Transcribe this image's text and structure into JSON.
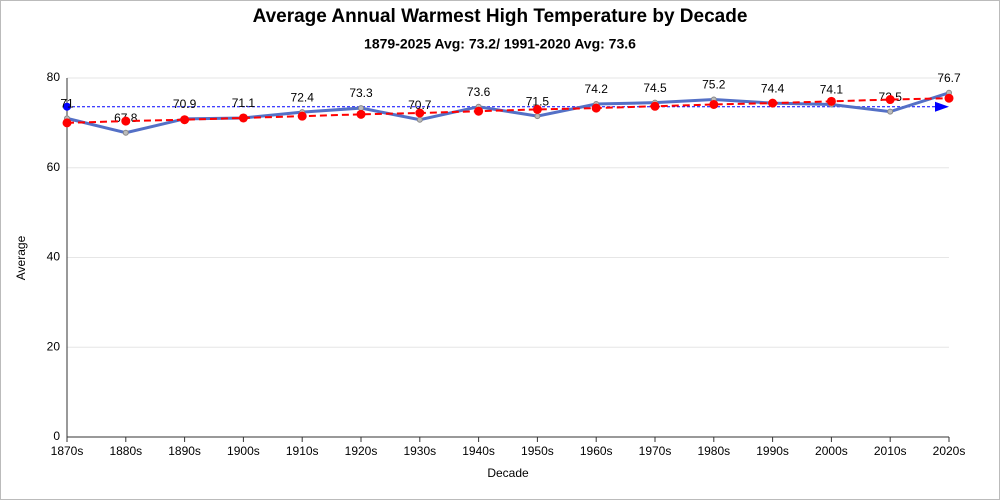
{
  "chart_data": {
    "type": "line",
    "title": "Average Annual Warmest High Temperature by Decade",
    "subtitle": "1879-2025 Avg: 73.2/ 1991-2020 Avg: 73.6",
    "x_label": "Decade",
    "y_label": "Average",
    "categories": [
      "1870s",
      "1880s",
      "1890s",
      "1900s",
      "1910s",
      "1920s",
      "1930s",
      "1940s",
      "1950s",
      "1960s",
      "1970s",
      "1980s",
      "1990s",
      "2000s",
      "2010s",
      "2020s"
    ],
    "series": [
      {
        "color": "#5470c6",
        "style": "solid",
        "data_labels": true,
        "values": [
          71,
          67.8,
          70.9,
          71.1,
          72.4,
          73.3,
          70.7,
          73.6,
          71.5,
          74.2,
          74.5,
          75.2,
          74.4,
          74.1,
          72.5,
          76.7
        ]
      },
      {
        "color": "#ff0000",
        "style": "dashed",
        "data_labels": false,
        "values": [
          70.0,
          70.4,
          70.7,
          71.1,
          71.5,
          71.9,
          72.2,
          72.6,
          73.0,
          73.3,
          73.7,
          74.1,
          74.4,
          74.8,
          75.2,
          75.5
        ]
      }
    ],
    "reference_line": {
      "value": 73.6,
      "color": "#0000ff"
    },
    "ylim": [
      0,
      80
    ],
    "yticks": [
      0,
      20,
      40,
      60,
      80
    ],
    "grid": true
  }
}
